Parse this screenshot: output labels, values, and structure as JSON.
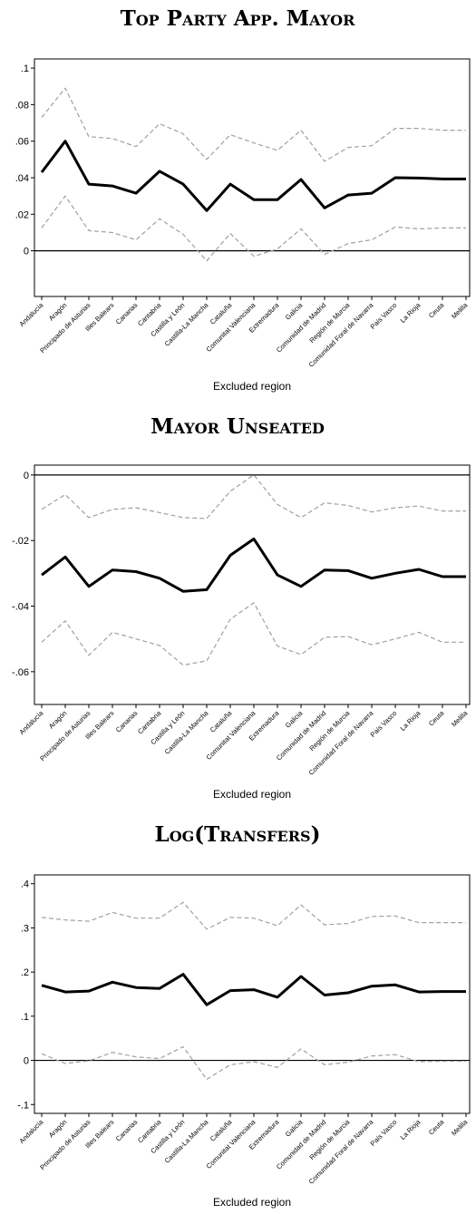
{
  "chart_data": [
    {
      "type": "line",
      "title": "Top Party App. Mayor",
      "xlabel": "Excluded region",
      "categories": [
        "Andalucía",
        "Aragón",
        "Principado de Asturias",
        "Illes Balears",
        "Canarias",
        "Cantabria",
        "Castilla y León",
        "Castilla-La Mancha",
        "Cataluña",
        "Comunitat Valenciana",
        "Extremadura",
        "Galicia",
        "Comunidad de Madrid",
        "Región de Murcia",
        "Comunidad Foral de Navarra",
        "País Vasco",
        "La Rioja",
        "Ceuta",
        "Melilla"
      ],
      "ylim": [
        -0.025,
        0.105
      ],
      "yticks": [
        0,
        {
          "value": 0.02,
          "label": ".02"
        },
        {
          "value": 0.04,
          "label": ".04"
        },
        {
          "value": 0.06,
          "label": ".06"
        },
        {
          "value": 0.08,
          "label": ".08"
        },
        {
          "value": 0.1,
          "label": ".1"
        }
      ],
      "hline": 0,
      "series": [
        {
          "color": "#000000",
          "style": "solid",
          "values": [
            0.043,
            0.06,
            0.0365,
            0.0355,
            0.0315,
            0.0435,
            0.0365,
            0.022,
            0.0365,
            0.028,
            0.028,
            0.039,
            0.0235,
            0.0305,
            0.0315,
            0.04,
            0.0398,
            0.0393,
            0.0393
          ]
        },
        {
          "color": "#a0a0a0",
          "style": "dashed",
          "values": [
            0.073,
            0.089,
            0.0625,
            0.0615,
            0.057,
            0.0695,
            0.064,
            0.05,
            0.0635,
            0.059,
            0.055,
            0.066,
            0.049,
            0.0565,
            0.0575,
            0.067,
            0.067,
            0.066,
            0.066
          ]
        },
        {
          "color": "#a0a0a0",
          "style": "dashed",
          "values": [
            0.0125,
            0.03,
            0.011,
            0.01,
            0.006,
            0.0175,
            0.009,
            -0.0055,
            0.0095,
            -0.003,
            0.001,
            0.012,
            -0.002,
            0.004,
            0.006,
            0.013,
            0.012,
            0.0125,
            0.0125
          ]
        }
      ]
    },
    {
      "type": "line",
      "title": "Mayor Unseated",
      "xlabel": "Excluded region",
      "categories": [
        "Andalucía",
        "Aragón",
        "Principado de Asturias",
        "Illes Balears",
        "Canarias",
        "Cantabria",
        "Castilla y León",
        "Castilla-La Mancha",
        "Cataluña",
        "Comunitat Valenciana",
        "Extremadura",
        "Galicia",
        "Comunidad de Madrid",
        "Región de Murcia",
        "Comunidad Foral de Navarra",
        "País Vasco",
        "La Rioja",
        "Ceuta",
        "Melilla"
      ],
      "ylim": [
        -0.07,
        0.003
      ],
      "yticks": [
        {
          "value": -0.06,
          "label": "-.06"
        },
        {
          "value": -0.04,
          "label": "-.04"
        },
        {
          "value": -0.02,
          "label": "-.02"
        },
        0
      ],
      "hline": 0,
      "series": [
        {
          "color": "#000000",
          "style": "solid",
          "values": [
            -0.0305,
            -0.025,
            -0.034,
            -0.029,
            -0.0295,
            -0.0315,
            -0.0355,
            -0.035,
            -0.0245,
            -0.0195,
            -0.0305,
            -0.034,
            -0.029,
            -0.0292,
            -0.0315,
            -0.03,
            -0.0288,
            -0.031,
            -0.031
          ]
        },
        {
          "color": "#a0a0a0",
          "style": "dashed",
          "values": [
            -0.0105,
            -0.006,
            -0.013,
            -0.0105,
            -0.01,
            -0.0115,
            -0.013,
            -0.0133,
            -0.005,
            0,
            -0.009,
            -0.013,
            -0.0085,
            -0.0093,
            -0.0113,
            -0.01,
            -0.0095,
            -0.011,
            -0.011
          ]
        },
        {
          "color": "#a0a0a0",
          "style": "dashed",
          "values": [
            -0.051,
            -0.0445,
            -0.055,
            -0.048,
            -0.05,
            -0.052,
            -0.058,
            -0.0567,
            -0.044,
            -0.039,
            -0.0522,
            -0.0548,
            -0.0495,
            -0.0493,
            -0.0518,
            -0.05,
            -0.048,
            -0.051,
            -0.051
          ]
        }
      ]
    },
    {
      "type": "line",
      "title": "Log(Transfers)",
      "xlabel": "Excluded region",
      "categories": [
        "Andalucía",
        "Aragón",
        "Principado de Asturias",
        "Illes Balears",
        "Canarias",
        "Cantabria",
        "Castilla y León",
        "Castilla-La Mancha",
        "Cataluña",
        "Comunitat Valenciana",
        "Extremadura",
        "Galicia",
        "Comunidad de Madrid",
        "Región de Murcia",
        "Comunidad Foral de Navarra",
        "País Vasco",
        "La Rioja",
        "Ceuta",
        "Melilla"
      ],
      "ylim": [
        -0.12,
        0.42
      ],
      "yticks": [
        {
          "value": -0.1,
          "label": "-.1"
        },
        0,
        {
          "value": 0.1,
          "label": ".1"
        },
        {
          "value": 0.2,
          "label": ".2"
        },
        {
          "value": 0.3,
          "label": ".3"
        },
        {
          "value": 0.4,
          "label": ".4"
        }
      ],
      "hline": 0,
      "series": [
        {
          "color": "#000000",
          "style": "solid",
          "values": [
            0.17,
            0.155,
            0.157,
            0.177,
            0.165,
            0.163,
            0.195,
            0.126,
            0.158,
            0.16,
            0.143,
            0.19,
            0.148,
            0.153,
            0.168,
            0.171,
            0.155,
            0.156,
            0.156
          ]
        },
        {
          "color": "#a0a0a0",
          "style": "dashed",
          "values": [
            0.324,
            0.318,
            0.315,
            0.335,
            0.322,
            0.322,
            0.358,
            0.297,
            0.324,
            0.322,
            0.305,
            0.352,
            0.307,
            0.31,
            0.326,
            0.327,
            0.312,
            0.312,
            0.312
          ]
        },
        {
          "color": "#a0a0a0",
          "style": "dashed",
          "values": [
            0.015,
            -0.007,
            -0.001,
            0.018,
            0.008,
            0.004,
            0.031,
            -0.043,
            -0.01,
            -0.003,
            -0.016,
            0.026,
            -0.01,
            -0.004,
            0.01,
            0.013,
            -0.003,
            -0.002,
            -0.002
          ]
        }
      ]
    }
  ]
}
